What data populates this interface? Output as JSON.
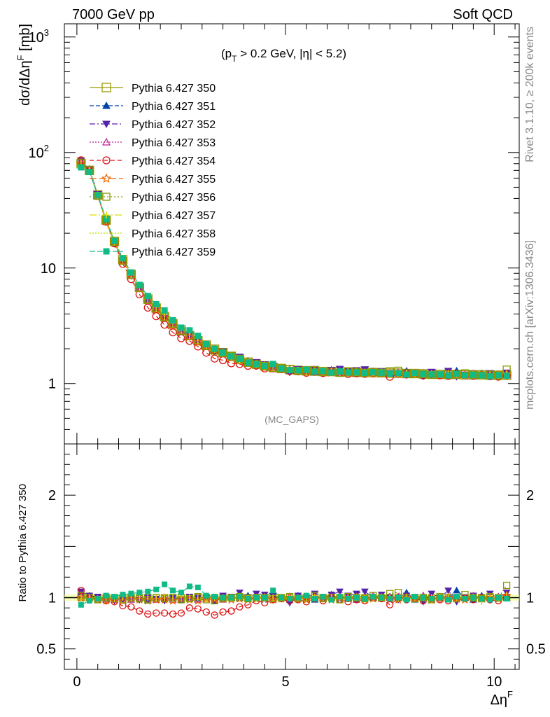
{
  "header": {
    "left": "7000 GeV pp",
    "right": "Soft QCD"
  },
  "side_labels": {
    "rivet": "Rivet 3.1.10, ≥ 200k events",
    "mcplots": "mcplots.cern.ch [arXiv:1306.3436]"
  },
  "watermark": "(MC_GAPS)",
  "cut_label": {
    "p": "(p",
    "sub": "T",
    "rest": " > 0.2 GeV, |η| < 5.2)"
  },
  "axes": {
    "main_ylabel": {
      "pre": "dσ/dΔη",
      "sup": "F",
      "post": " [mb]"
    },
    "ratio_ylabel": "Ratio to Pythia 6.427 350",
    "xlabel": {
      "main": "Δη",
      "sup": "F"
    },
    "main_yticks": [
      {
        "v": 1,
        "label": "1"
      },
      {
        "v": 10,
        "label": "10"
      },
      {
        "v": 100,
        "label": "10",
        "sup": "2"
      },
      {
        "v": 1000,
        "label": "10",
        "sup": "3"
      }
    ],
    "ratio_yticks": [
      {
        "v": 0.5,
        "label": "0.5"
      },
      {
        "v": 1,
        "label": "1"
      },
      {
        "v": 2,
        "label": "2"
      }
    ],
    "xticks": [
      {
        "v": 0,
        "label": "0"
      },
      {
        "v": 5,
        "label": "5"
      },
      {
        "v": 10,
        "label": "10"
      }
    ]
  },
  "chart_data": {
    "type": "line",
    "x": [
      0.1,
      0.3,
      0.5,
      0.7,
      0.9,
      1.1,
      1.3,
      1.5,
      1.7,
      1.9,
      2.1,
      2.3,
      2.5,
      2.7,
      2.9,
      3.1,
      3.3,
      3.5,
      3.7,
      3.9,
      4.1,
      4.3,
      4.5,
      4.7,
      4.9,
      5.1,
      5.3,
      5.5,
      5.7,
      5.9,
      6.1,
      6.3,
      6.5,
      6.7,
      6.9,
      7.1,
      7.3,
      7.5,
      7.7,
      7.9,
      8.1,
      8.3,
      8.5,
      8.7,
      8.9,
      9.1,
      9.3,
      9.5,
      9.7,
      9.9,
      10.1,
      10.3
    ],
    "xlim": [
      -0.3,
      10.6
    ],
    "ylim": [
      0.3,
      1300
    ],
    "yscale": "log",
    "ratio_ylim": [
      0.3,
      2.5
    ],
    "reference": [
      80,
      70,
      43,
      26,
      17,
      11.8,
      8.8,
      6.8,
      5.4,
      4.5,
      3.8,
      3.3,
      2.9,
      2.6,
      2.35,
      2.15,
      1.98,
      1.85,
      1.72,
      1.62,
      1.53,
      1.47,
      1.42,
      1.38,
      1.35,
      1.32,
      1.3,
      1.29,
      1.28,
      1.27,
      1.27,
      1.26,
      1.26,
      1.25,
      1.25,
      1.24,
      1.24,
      1.23,
      1.23,
      1.22,
      1.22,
      1.21,
      1.21,
      1.2,
      1.2,
      1.2,
      1.19,
      1.19,
      1.19,
      1.18,
      1.18,
      1.18
    ],
    "series": [
      {
        "name": "Pythia 6.427 350",
        "color": "#999900",
        "marker": "square-open",
        "dash": "",
        "ratio": [
          1,
          1,
          1,
          1,
          1,
          1,
          1,
          1,
          1,
          1,
          1,
          1,
          1,
          1,
          1,
          1,
          1,
          1,
          1,
          1,
          1,
          1,
          1,
          1,
          1,
          1,
          1,
          1,
          1,
          1,
          1,
          1,
          1,
          1,
          1,
          1,
          1,
          1,
          1,
          1,
          1,
          1,
          1,
          1,
          1,
          1,
          1,
          1,
          1,
          1,
          1,
          1
        ]
      },
      {
        "name": "Pythia 6.427 351",
        "color": "#0044aa",
        "marker": "triangle-up",
        "dash": "6,3",
        "ratio": [
          1.05,
          1.02,
          1.0,
          0.99,
          0.98,
          0.99,
          0.98,
          1.0,
          0.97,
          0.98,
          0.99,
          1.0,
          0.98,
          1.0,
          0.99,
          1.01,
          0.97,
          0.99,
          1.0,
          1.0,
          1.02,
          1.0,
          0.99,
          1.01,
          1.0,
          0.98,
          1.02,
          1.01,
          0.98,
          1.0,
          1.03,
          0.99,
          1.0,
          0.98,
          1.01,
          1.0,
          0.99,
          1.01,
          1.0,
          1.05,
          0.98,
          1.02,
          1.0,
          0.99,
          1.0,
          1.07,
          1.0,
          0.98,
          1.02,
          1.0,
          0.99,
          1.03
        ]
      },
      {
        "name": "Pythia 6.427 352",
        "color": "#5522aa",
        "marker": "triangle-down",
        "dash": "8,3,2,3",
        "ratio": [
          1.06,
          1.02,
          1.01,
          1.0,
          0.97,
          0.98,
          0.99,
          0.98,
          1.0,
          0.99,
          0.97,
          1.0,
          0.98,
          1.01,
          1.0,
          1.0,
          0.98,
          1.02,
          1.01,
          1.05,
          1.0,
          1.04,
          1.03,
          1.02,
          1.0,
          0.95,
          1.02,
          1.0,
          1.04,
          1.0,
          1.03,
          1.06,
          1.02,
          1.04,
          1.06,
          1.0,
          1.03,
          1.0,
          0.98,
          1.02,
          1.0,
          0.96,
          1.04,
          1.0,
          1.07,
          0.96,
          1.0,
          1.02,
          0.98,
          1.04,
          1.0,
          1.05
        ]
      },
      {
        "name": "Pythia 6.427 353",
        "color": "#bb2299",
        "marker": "triangle-open",
        "dash": "2,2",
        "ratio": [
          1.03,
          1.0,
          0.99,
          0.98,
          0.98,
          0.97,
          0.98,
          1.0,
          0.99,
          0.98,
          1.0,
          0.98,
          0.99,
          1.0,
          0.98,
          0.99,
          1.0,
          0.98,
          1.0,
          1.01,
          0.99,
          1.0,
          1.0,
          0.98,
          1.0,
          1.01,
          0.99,
          1.0,
          1.0,
          0.99,
          1.01,
          1.0,
          1.0,
          0.98,
          1.0,
          1.02,
          0.99,
          1.0,
          1.01,
          1.0,
          0.99,
          1.02,
          1.0,
          0.99,
          1.01,
          1.0,
          1.0,
          1.02,
          0.99,
          1.0,
          1.01,
          1.0
        ]
      },
      {
        "name": "Pythia 6.427 354",
        "color": "#dd1111",
        "marker": "circle-open",
        "dash": "6,4",
        "ratio": [
          1.07,
          1.0,
          0.98,
          0.97,
          0.96,
          0.92,
          0.91,
          0.87,
          0.84,
          0.85,
          0.85,
          0.84,
          0.85,
          0.9,
          0.89,
          0.86,
          0.83,
          0.86,
          0.87,
          0.91,
          0.93,
          0.97,
          0.95,
          0.98,
          0.99,
          0.97,
          0.98,
          0.96,
          0.99,
          0.97,
          1.0,
          0.98,
          0.96,
          0.98,
          0.97,
          1.0,
          0.99,
          0.93,
          0.99,
          0.98,
          1.0,
          0.97,
          0.99,
          0.98,
          0.97,
          1.0,
          0.99,
          0.98,
          1.0,
          0.98,
          0.97,
          1.0
        ]
      },
      {
        "name": "Pythia 6.427 355",
        "color": "#ee6600",
        "marker": "star-open",
        "dash": "10,4",
        "ratio": [
          1.0,
          0.99,
          0.98,
          0.97,
          0.98,
          0.97,
          0.99,
          0.98,
          0.97,
          0.98,
          0.98,
          0.97,
          0.99,
          0.98,
          0.97,
          0.99,
          0.98,
          0.99,
          0.98,
          0.99,
          0.98,
          0.99,
          1.0,
          0.98,
          0.99,
          1.0,
          0.99,
          0.98,
          1.0,
          0.99,
          0.98,
          1.0,
          0.99,
          1.0,
          0.98,
          0.99,
          1.0,
          0.99,
          0.98,
          1.0,
          0.99,
          1.0,
          0.98,
          0.99,
          1.0,
          0.99,
          0.98,
          1.0,
          0.99,
          1.0,
          0.99,
          1.02
        ]
      },
      {
        "name": "Pythia 6.427 356",
        "color": "#889900",
        "marker": "square-open",
        "dash": "2,3",
        "ratio": [
          1.02,
          1.0,
          0.98,
          1.0,
          0.99,
          0.98,
          1.0,
          0.99,
          0.98,
          1.0,
          0.99,
          1.0,
          0.98,
          0.99,
          1.01,
          0.98,
          0.97,
          0.99,
          1.0,
          1.01,
          0.99,
          1.0,
          1.0,
          0.99,
          1.0,
          1.01,
          0.99,
          1.0,
          1.02,
          0.99,
          1.0,
          0.98,
          1.01,
          1.0,
          0.99,
          1.02,
          1.0,
          1.04,
          1.05,
          1.0,
          0.99,
          1.0,
          0.98,
          1.01,
          1.0,
          0.99,
          1.03,
          1.0,
          0.99,
          1.01,
          1.0,
          1.12
        ]
      },
      {
        "name": "Pythia 6.427 357",
        "color": "#dddd00",
        "marker": "tick",
        "dash": "10,3,2,3",
        "ratio": [
          1.0,
          1.0,
          0.99,
          1.0,
          0.99,
          1.0,
          0.99,
          1.0,
          1.0,
          0.99,
          1.0,
          1.0,
          0.99,
          1.0,
          1.0,
          0.99,
          1.0,
          1.0,
          1.0,
          0.99,
          1.0,
          1.0,
          1.0,
          1.0,
          1.0,
          0.99,
          1.0,
          1.0,
          1.0,
          1.0,
          1.0,
          0.99,
          1.0,
          1.0,
          1.0,
          1.0,
          1.0,
          1.0,
          0.99,
          1.0,
          1.0,
          1.0,
          1.0,
          1.0,
          1.0,
          1.0,
          0.99,
          1.0,
          0.96,
          1.0,
          1.0,
          1.02
        ]
      },
      {
        "name": "Pythia 6.427 358",
        "color": "#bbdd00",
        "marker": "none",
        "dash": "2,2",
        "ratio": [
          1.0,
          1.0,
          1.0,
          1.0,
          1.0,
          1.0,
          1.0,
          1.0,
          1.0,
          1.0,
          1.0,
          1.0,
          1.0,
          1.0,
          1.0,
          1.0,
          1.0,
          1.0,
          1.0,
          1.0,
          1.0,
          1.0,
          1.0,
          1.0,
          1.0,
          1.0,
          1.0,
          1.0,
          1.0,
          1.0,
          1.0,
          1.0,
          1.0,
          1.0,
          1.0,
          1.0,
          1.0,
          1.0,
          1.0,
          1.0,
          1.0,
          1.0,
          1.0,
          1.0,
          1.0,
          1.0,
          1.0,
          1.0,
          1.0,
          1.0,
          1.0,
          1.0
        ]
      },
      {
        "name": "Pythia 6.427 359",
        "color": "#11bb88",
        "marker": "square-filled",
        "dash": "8,3",
        "ratio": [
          0.93,
          0.97,
          0.99,
          1.02,
          1.01,
          1.03,
          1.04,
          1.05,
          1.06,
          1.08,
          1.13,
          1.07,
          1.05,
          1.11,
          1.1,
          1.02,
          1.01,
          1.0,
          1.0,
          1.01,
          0.99,
          1.0,
          1.0,
          1.07,
          1.0,
          0.99,
          1.0,
          1.02,
          0.99,
          1.01,
          0.98,
          1.01,
          0.99,
          1.0,
          0.99,
          1.01,
          1.0,
          0.99,
          1.0,
          0.98,
          1.01,
          1.0,
          0.99,
          1.0,
          0.98,
          1.01,
          0.99,
          1.0,
          0.99,
          0.98,
          1.0,
          0.99
        ]
      }
    ]
  }
}
